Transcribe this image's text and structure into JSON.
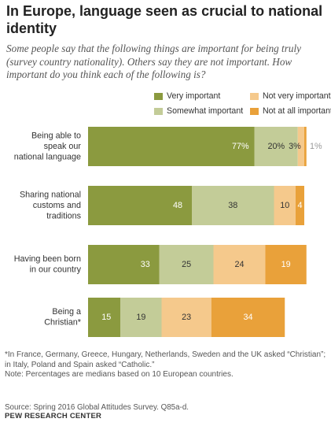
{
  "chart_data": {
    "type": "bar",
    "orientation": "horizontal",
    "stacked": true,
    "title": "In Europe, language seen as crucial to national identity",
    "subtitle": "Some people say that the following things are important for being truly (survey country nationality). Others say they are not important. How important do you think each of the following is?",
    "categories": [
      "Being able to speak our national language",
      "Sharing national customs and traditions",
      "Having been born in our country",
      "Being a Christian*"
    ],
    "category_lines": [
      [
        "Being able to",
        "speak our",
        "national language"
      ],
      [
        "Sharing national",
        "customs and",
        "traditions"
      ],
      [
        "Having been born",
        "in our country"
      ],
      [
        "Being a",
        "Christian*"
      ]
    ],
    "series": [
      {
        "name": "Very important",
        "color": "#8b9a3f",
        "values": [
          77,
          48,
          33,
          15
        ],
        "labels": [
          "77%",
          "48",
          "33",
          "15"
        ]
      },
      {
        "name": "Somewhat important",
        "color": "#c3cc98",
        "values": [
          20,
          38,
          25,
          19
        ],
        "labels": [
          "20%",
          "38",
          "25",
          "19"
        ]
      },
      {
        "name": "Not very important",
        "color": "#f5c98c",
        "values": [
          3,
          10,
          24,
          23
        ],
        "labels": [
          "3%",
          "10",
          "24",
          "23"
        ]
      },
      {
        "name": "Not at all important",
        "color": "#e9a13a",
        "values": [
          1,
          4,
          19,
          34
        ],
        "labels": [
          "1%",
          "4",
          "19",
          "34"
        ]
      }
    ],
    "legend_order": [
      "Very important",
      "Not very important",
      "Somewhat important",
      "Not at all important"
    ],
    "legend_placement": "top",
    "xlim": [
      0,
      100
    ],
    "grid": false
  },
  "notes": [
    "*In France, Germany, Greece, Hungary, Netherlands, Sweden and the UK asked “Christian”; in Italy, Poland and Spain asked “Catholic.”",
    "Note: Percentages are medians based on 10 European countries."
  ],
  "source": "Source: Spring 2016 Global Attitudes Survey. Q85a-d.",
  "brand": "PEW RESEARCH CENTER"
}
